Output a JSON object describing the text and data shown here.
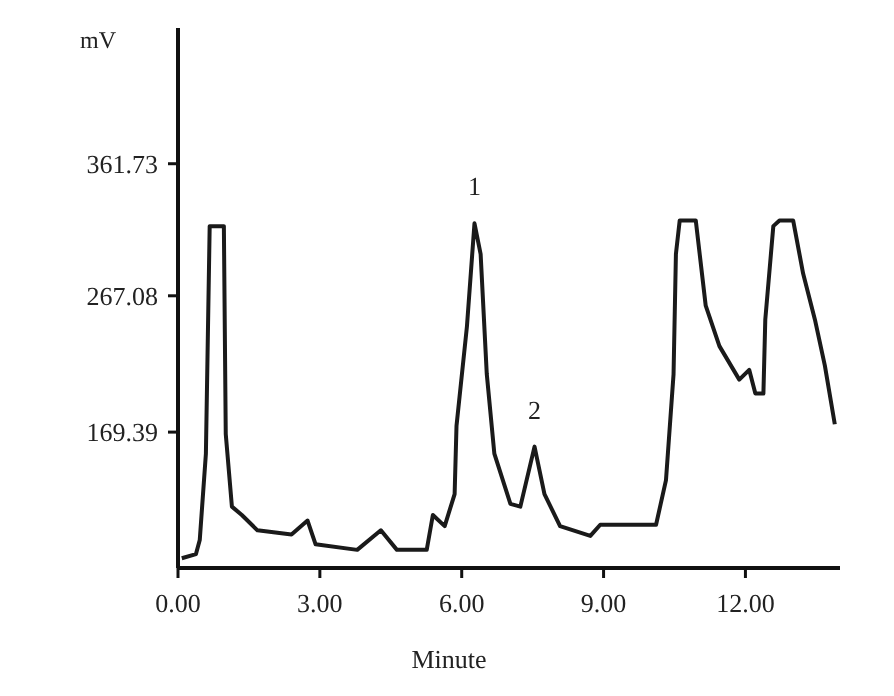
{
  "chart_data": {
    "type": "line",
    "xlabel": "Minute",
    "ylabel": "mV",
    "xlim": [
      0,
      14
    ],
    "ylim": [
      72,
      459
    ],
    "xticks": [
      {
        "value": 0,
        "label": "0.00"
      },
      {
        "value": 3,
        "label": "3.00"
      },
      {
        "value": 6,
        "label": "6.00"
      },
      {
        "value": 9,
        "label": "9.00"
      },
      {
        "value": 12,
        "label": "12.00"
      }
    ],
    "yticks": [
      169.39,
      267.08,
      361.73
    ],
    "grid": false,
    "marker": "none",
    "line_style": "solid",
    "series": [
      {
        "color": "#1a1a1a",
        "x": [
          0.08,
          0.38,
          0.46,
          0.59,
          0.67,
          0.97,
          1.01,
          1.14,
          1.35,
          1.68,
          2.4,
          2.74,
          2.91,
          3.79,
          4.29,
          4.63,
          5.26,
          5.39,
          5.64,
          5.85,
          5.89,
          6.11,
          6.27,
          6.4,
          6.53,
          6.69,
          7.03,
          7.24,
          7.54,
          7.75,
          8.08,
          8.72,
          8.93,
          10.11,
          10.32,
          10.48,
          10.53,
          10.61,
          10.95,
          11.16,
          11.45,
          11.87,
          12.08,
          12.21,
          12.38,
          12.42,
          12.59,
          12.72,
          13.01,
          13.22,
          13.47,
          13.68,
          13.89
        ],
        "values": [
          79,
          82,
          92,
          154,
          317,
          317,
          168,
          116,
          110,
          99,
          96,
          106,
          89,
          85,
          99,
          85,
          85,
          110,
          102,
          125,
          174,
          245,
          319,
          297,
          211,
          154,
          118,
          116,
          159,
          125,
          102,
          95,
          103,
          103,
          135,
          211,
          297,
          321,
          321,
          260,
          231,
          207,
          214,
          197,
          197,
          250,
          317,
          321,
          321,
          283,
          250,
          217,
          175
        ]
      }
    ],
    "annotations": [
      {
        "text": "1",
        "x": 6.27,
        "y": 319
      },
      {
        "text": "2",
        "x": 7.54,
        "y": 159
      }
    ]
  }
}
